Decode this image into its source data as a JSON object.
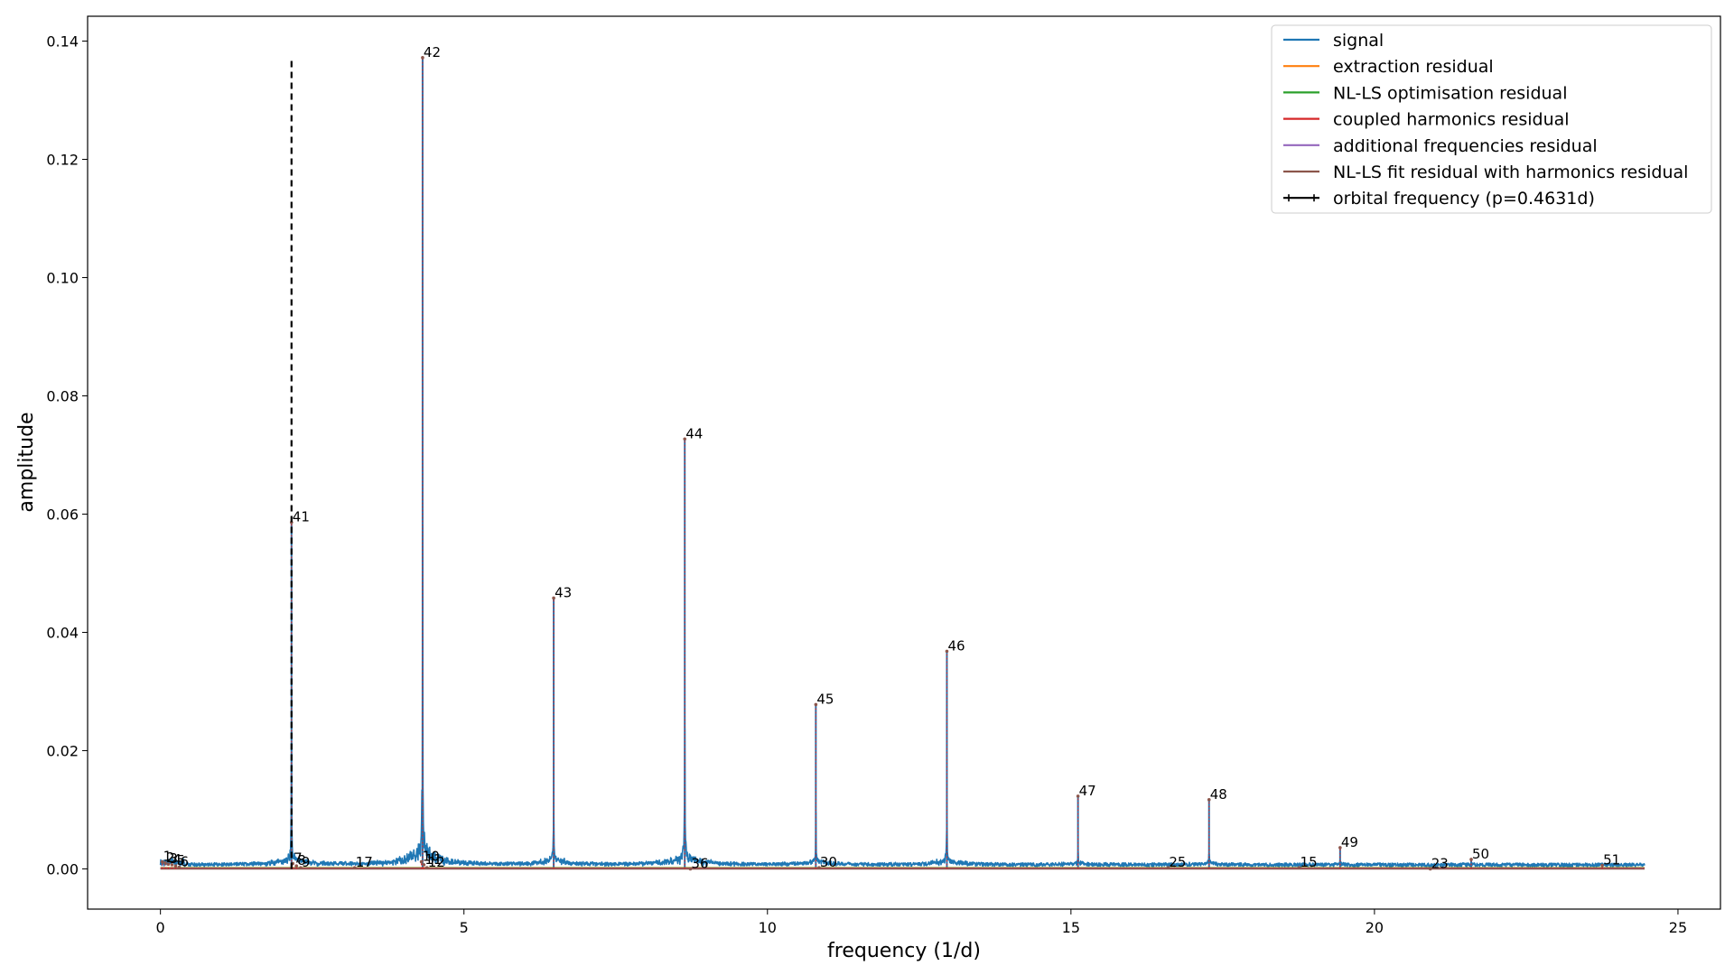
{
  "chart_data": {
    "type": "line",
    "xlabel": "frequency (1/d)",
    "ylabel": "amplitude",
    "xlim": [
      -1.2,
      25.7
    ],
    "ylim": [
      -0.0068,
      0.1442
    ],
    "xticks": [
      0,
      5,
      10,
      15,
      20,
      25
    ],
    "xtick_labels": [
      "0",
      "5",
      "10",
      "15",
      "20",
      "25"
    ],
    "yticks": [
      0.0,
      0.02,
      0.04,
      0.06,
      0.08,
      0.1,
      0.12,
      0.14
    ],
    "ytick_labels": [
      "0.00",
      "0.02",
      "0.04",
      "0.06",
      "0.08",
      "0.10",
      "0.12",
      "0.14"
    ],
    "grid": false,
    "legend_placement": "top-right",
    "series": [
      {
        "name": "signal",
        "color": "#1f77b4"
      },
      {
        "name": "extraction residual",
        "color": "#ff7f0e"
      },
      {
        "name": "NL-LS optimisation residual",
        "color": "#2ca02c"
      },
      {
        "name": "coupled harmonics residual",
        "color": "#d62728"
      },
      {
        "name": "additional frequencies residual",
        "color": "#9467bd"
      },
      {
        "name": "NL-LS fit residual with harmonics residual",
        "color": "#8c564b"
      },
      {
        "name": "orbital frequency (p=0.4631d)",
        "color": "#000000",
        "dashed": true
      }
    ],
    "orbital_frequency": {
      "x": 2.1594,
      "y_top": 0.1372
    },
    "signal_peaks": [
      {
        "x": 2.1594,
        "amplitude": 0.0586
      },
      {
        "x": 4.3188,
        "amplitude": 0.1372
      },
      {
        "x": 6.4782,
        "amplitude": 0.0458
      },
      {
        "x": 8.6376,
        "amplitude": 0.0727
      },
      {
        "x": 10.797,
        "amplitude": 0.0278
      },
      {
        "x": 12.956,
        "amplitude": 0.0368
      },
      {
        "x": 15.116,
        "amplitude": 0.0123
      },
      {
        "x": 17.275,
        "amplitude": 0.0117
      },
      {
        "x": 19.434,
        "amplitude": 0.0036
      },
      {
        "x": 21.594,
        "amplitude": 0.0016
      },
      {
        "x": 23.753,
        "amplitude": 0.0006
      }
    ],
    "labeled_frequencies": [
      {
        "label": "41",
        "x": 2.1594,
        "y": 0.0586
      },
      {
        "label": "42",
        "x": 4.3188,
        "y": 0.1372
      },
      {
        "label": "43",
        "x": 6.4782,
        "y": 0.0458
      },
      {
        "label": "44",
        "x": 8.6376,
        "y": 0.0727
      },
      {
        "label": "45",
        "x": 10.797,
        "y": 0.0278
      },
      {
        "label": "46",
        "x": 12.956,
        "y": 0.0368
      },
      {
        "label": "47",
        "x": 15.116,
        "y": 0.0123
      },
      {
        "label": "48",
        "x": 17.275,
        "y": 0.0117
      },
      {
        "label": "49",
        "x": 19.434,
        "y": 0.0036
      },
      {
        "label": "50",
        "x": 21.594,
        "y": 0.0016
      },
      {
        "label": "51",
        "x": 23.753,
        "y": 0.0006
      },
      {
        "label": "17",
        "x": 3.2,
        "y": 0.0002
      },
      {
        "label": "36",
        "x": 8.73,
        "y": 0.0
      },
      {
        "label": "30",
        "x": 10.85,
        "y": 0.0002
      },
      {
        "label": "25",
        "x": 16.6,
        "y": 0.0002
      },
      {
        "label": "15",
        "x": 18.76,
        "y": 0.0002
      },
      {
        "label": "23",
        "x": 20.92,
        "y": 0.0
      },
      {
        "label": "1",
        "x": 0.03,
        "y": 0.0012
      },
      {
        "label": "2",
        "x": 0.08,
        "y": 0.001
      },
      {
        "label": "3",
        "x": 0.13,
        "y": 0.0008
      },
      {
        "label": "4",
        "x": 0.19,
        "y": 0.0007
      },
      {
        "label": "5",
        "x": 0.25,
        "y": 0.0005
      },
      {
        "label": "6",
        "x": 0.31,
        "y": 0.0003
      },
      {
        "label": "7",
        "x": 2.18,
        "y": 0.0009
      },
      {
        "label": "8",
        "x": 2.24,
        "y": 0.0005
      },
      {
        "label": "9",
        "x": 2.31,
        "y": 0.0002
      },
      {
        "label": "10",
        "x": 4.3,
        "y": 0.0012
      },
      {
        "label": "11",
        "x": 4.34,
        "y": 0.0007
      },
      {
        "label": "12",
        "x": 4.39,
        "y": 0.0002
      }
    ]
  }
}
